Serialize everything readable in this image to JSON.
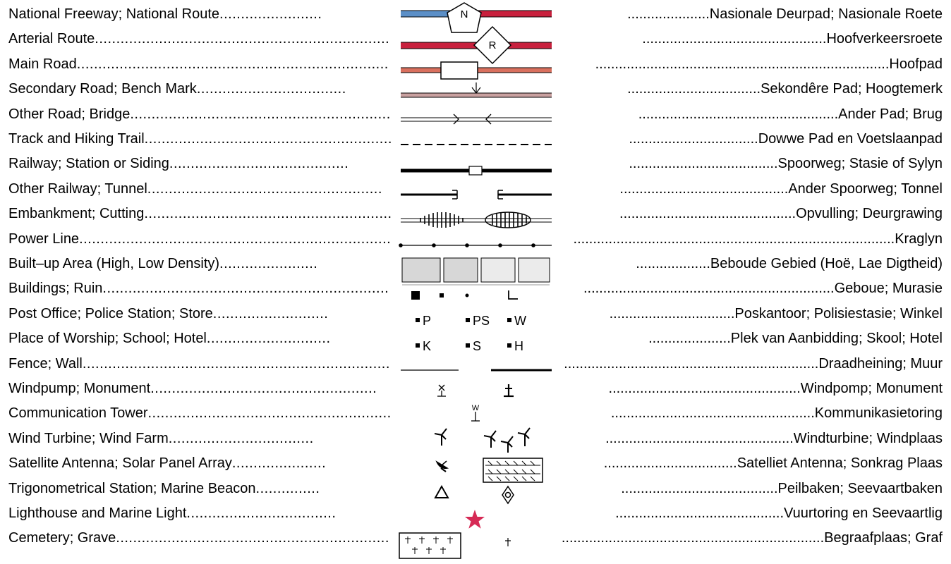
{
  "rows": [
    {
      "en": "National Freeway; National Route",
      "af": "Nasionale  Deurpad; Nasionale Roete",
      "en_dots": "........................",
      "af_dots": ".....................",
      "symbol": "N"
    },
    {
      "en": "Arterial Route",
      "af": "Hoofverkeersroete",
      "en_dots": "........................................................................",
      "af_dots": "...............................................",
      "symbol": "R"
    },
    {
      "en": "Main Road",
      "af": "Hoofpad",
      "en_dots": ".....................................................................................",
      "af_dots": "..........................................................................."
    },
    {
      "en": "Secondary Road; Bench Mark",
      "af": "Sekondêre Pad; Hoogtemerk",
      "en_dots": "...................................",
      "af_dots": ".................................."
    },
    {
      "en": "Other Road; Bridge",
      "af": "Ander Pad; Brug",
      "en_dots": ".............................................................",
      "af_dots": "..................................................."
    },
    {
      "en": "Track and Hiking Trail",
      "af": "Dowwe Pad en Voetslaanpad",
      "en_dots": "...........................................................",
      "af_dots": "................................."
    },
    {
      "en": "Railway; Station or Siding",
      "af": "Spoorweg; Stasie of Sylyn",
      "en_dots": "..........................................",
      "af_dots": "......................................"
    },
    {
      "en": "Other Railway; Tunnel",
      "af": "Ander Spoorweg; Tonnel",
      "en_dots": ".......................................................",
      "af_dots": "..........................................."
    },
    {
      "en": "Embankment; Cutting",
      "af": "Opvulling; Deurgrawing",
      "en_dots": "...................................................................",
      "af_dots": "............................................."
    },
    {
      "en": "Power Line",
      "af": "Kraglyn",
      "en_dots": ".............................................................................................",
      "af_dots": ".................................................................................."
    },
    {
      "en": "Built–up Area (High, Low Density)",
      "af": "Beboude Gebied (Hoë, Lae Digtheid)",
      "en_dots": ".......................",
      "af_dots": "..................."
    },
    {
      "en": "Buildings; Ruin",
      "af": "Geboue; Murasie",
      "en_dots": ".........................................................................",
      "af_dots": "................................................................"
    },
    {
      "en": "Post Office; Police Station; Store",
      "af": "Poskantoor; Polisiestasie; Winkel",
      "en_dots": "...........................",
      "af_dots": "................................",
      "marks": [
        "P",
        "PS",
        "W"
      ]
    },
    {
      "en": "Place of Worship; School; Hotel",
      "af": "Plek van Aanbidding; Skool; Hotel",
      "en_dots": ".............................",
      "af_dots": ".....................",
      "marks": [
        "K",
        "S",
        "H"
      ]
    },
    {
      "en": "Fence; Wall",
      "af": "Draadheining; Muur",
      "en_dots": ".................................................................................",
      "af_dots": "..................................................................."
    },
    {
      "en": "Windpump; Monument",
      "af": "Windpomp; Monument",
      "en_dots": ".....................................................",
      "af_dots": "................................................."
    },
    {
      "en": "Communication Tower",
      "af": "Kommunikasietoring",
      "en_dots": ".................................................................",
      "af_dots": "....................................................",
      "symbol": "W"
    },
    {
      "en": "Wind Turbine; Wind Farm",
      "af": "Windturbine; Windplaas",
      "en_dots": "..................................",
      "af_dots": "................................................"
    },
    {
      "en": "Satellite Antenna; Solar Panel Array",
      "af": "Satelliet Antenna; Sonkrag Plaas",
      "en_dots": "......................",
      "af_dots": ".................................."
    },
    {
      "en": "Trigonometrical Station; Marine Beacon",
      "af": "Peilbaken; Seevaartbaken",
      "en_dots": "...............",
      "af_dots": "........................................"
    },
    {
      "en": "Lighthouse and Marine Light",
      "af": "Vuurtoring en Seevaartlig",
      "en_dots": "...................................",
      "af_dots": "..........................................."
    },
    {
      "en": "Cemetery; Grave",
      "af": "Begraafplaas; Graf",
      "en_dots": ".....................................................................",
      "af_dots": "....................................................................."
    }
  ],
  "colors": {
    "freeway_blue": "#5b8fc7",
    "route_red": "#c8203d",
    "main_road": "#d9705e",
    "secondary_road": "#c9a1a0",
    "star_red": "#d62a55",
    "builtup_high": "#d7d7d7",
    "builtup_low": "#ebebeb"
  }
}
